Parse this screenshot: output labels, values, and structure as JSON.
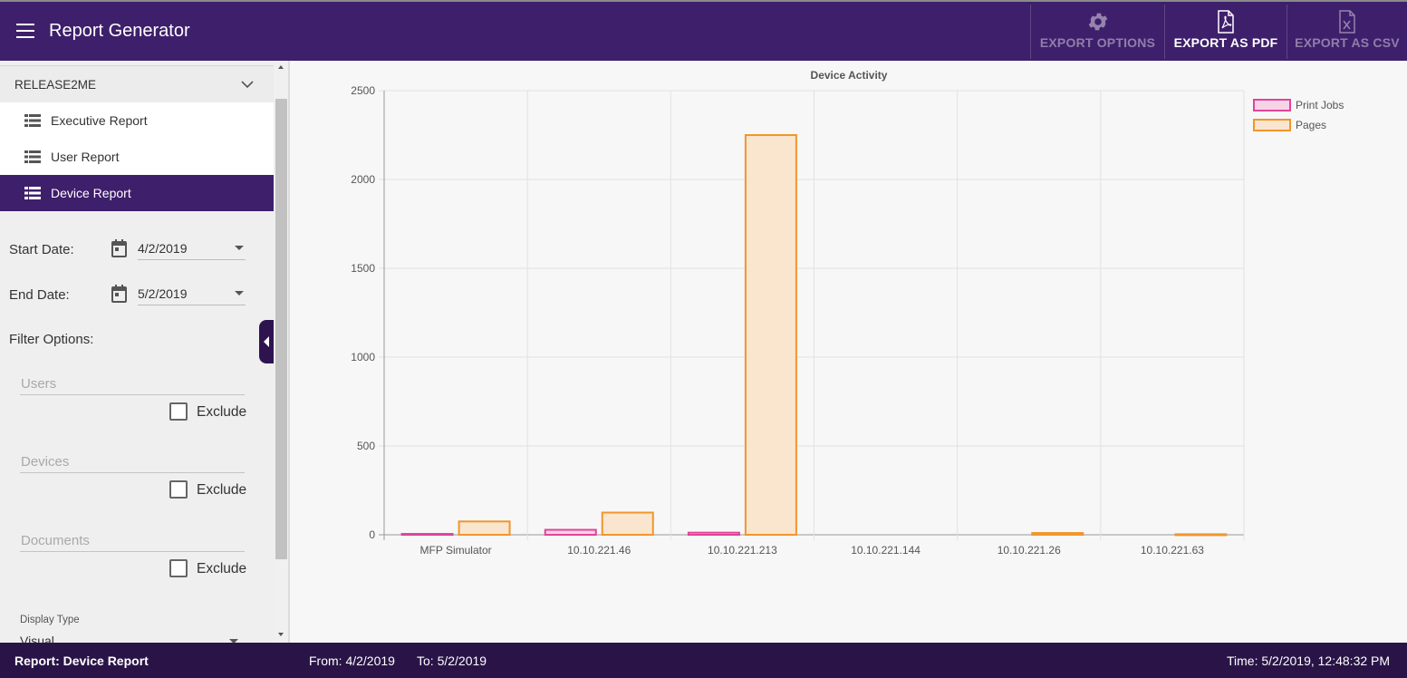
{
  "header": {
    "title": "Report Generator",
    "buttons": [
      {
        "label": "EXPORT OPTIONS",
        "icon": "gear-icon",
        "enabled": false
      },
      {
        "label": "EXPORT AS PDF",
        "icon": "pdf-file-icon",
        "enabled": true
      },
      {
        "label": "EXPORT AS CSV",
        "icon": "csv-file-icon",
        "enabled": false
      }
    ]
  },
  "sidebar": {
    "group": "RELEASE2ME",
    "items": [
      {
        "label": "Executive Report",
        "icon": "list-icon",
        "active": false
      },
      {
        "label": "User Report",
        "icon": "list-icon",
        "active": false
      },
      {
        "label": "Device Report",
        "icon": "list-icon",
        "active": true
      }
    ],
    "start_date_label": "Start Date:",
    "start_date": "4/2/2019",
    "end_date_label": "End Date:",
    "end_date": "5/2/2019",
    "filter_label": "Filter Options:",
    "filters": [
      {
        "placeholder": "Users",
        "exclude_label": "Exclude",
        "excluded": false
      },
      {
        "placeholder": "Devices",
        "exclude_label": "Exclude",
        "excluded": false
      },
      {
        "placeholder": "Documents",
        "exclude_label": "Exclude",
        "excluded": false
      }
    ],
    "display_type_label": "Display Type",
    "display_type": "Visual"
  },
  "chart_data": {
    "type": "bar",
    "title": "Device Activity",
    "categories": [
      "MFP Simulator",
      "10.10.221.46",
      "10.10.221.213",
      "10.10.221.144",
      "10.10.221.26",
      "10.10.221.63"
    ],
    "series": [
      {
        "name": "Print Jobs",
        "values": [
          5,
          28,
          12,
          0,
          0,
          0
        ],
        "stroke": "#e0449a",
        "fill": "#f7d3e6"
      },
      {
        "name": "Pages",
        "values": [
          75,
          125,
          2250,
          0,
          10,
          3
        ],
        "stroke": "#f0962c",
        "fill": "#fae5cf"
      }
    ],
    "ylim": [
      0,
      2500
    ],
    "yticks": [
      0,
      500,
      1000,
      1500,
      2000,
      2500
    ],
    "grid": true,
    "legend": "top-right"
  },
  "footer": {
    "report": "Report: Device Report",
    "from": "From: 4/2/2019",
    "to": "To: 5/2/2019",
    "time": "Time: 5/2/2019, 12:48:32 PM"
  }
}
